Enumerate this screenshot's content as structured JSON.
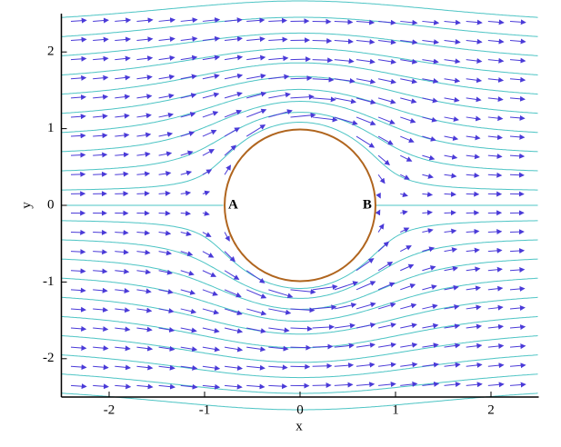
{
  "chart_data": {
    "type": "vector_field",
    "xlabel": "x",
    "ylabel": "y",
    "xlim": [
      -2.5,
      2.5
    ],
    "ylim": [
      -2.5,
      2.5
    ],
    "xticks": [
      -2,
      -1,
      0,
      1,
      2
    ],
    "yticks": [
      -2,
      -1,
      0,
      1,
      2
    ],
    "circle": {
      "cx": 0,
      "cy": 0,
      "rx": 0.79,
      "ry": 0.99,
      "color": "#b0651e"
    },
    "annotations": [
      "A",
      "B"
    ],
    "streamlines": [
      2.45,
      2.2,
      1.95,
      1.7,
      1.45,
      1.2,
      0.95,
      0.7,
      0.45,
      0.2,
      0,
      -0.2,
      -0.45,
      -0.7,
      -0.95,
      -1.2,
      -1.45,
      -1.7,
      -1.95,
      -2.2,
      -2.45
    ],
    "streamline_color": "#4cc4c4",
    "arrow_x": [
      -2.4,
      -2.17,
      -1.94,
      -1.71,
      -1.48,
      -1.25,
      -1.02,
      -0.79,
      -0.56,
      -0.33,
      -0.1,
      0.13,
      0.36,
      0.59,
      0.82,
      1.05,
      1.28,
      1.51,
      1.74,
      1.97,
      2.2
    ],
    "arrow_y": [
      2.4,
      2.15,
      1.9,
      1.65,
      1.4,
      1.15,
      0.9,
      0.65,
      0.4,
      0.15,
      -0.1,
      -0.35,
      -0.6,
      -0.85,
      -1.1,
      -1.35,
      -1.6,
      -1.85,
      -2.1,
      -2.35
    ],
    "arrow_color": "#4a3ad8"
  }
}
